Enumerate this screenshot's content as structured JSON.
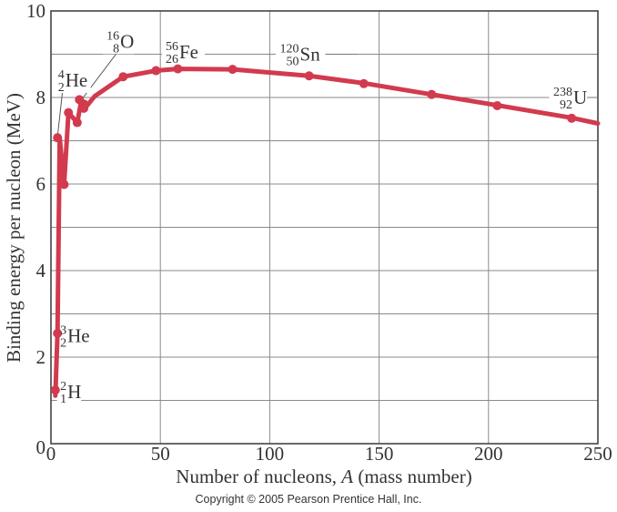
{
  "chart_data": {
    "type": "line",
    "title": "",
    "xlabel": "Number of nucleons, A (mass number)",
    "xlabel_parts": [
      "Number of nucleons, ",
      "A",
      " (mass number)"
    ],
    "ylabel": "Binding energy per nucleon (MeV)",
    "xlim": [
      0,
      250
    ],
    "ylim": [
      0,
      10
    ],
    "x_ticks": [
      0,
      50,
      100,
      150,
      200,
      250
    ],
    "y_ticks": [
      0,
      2,
      4,
      6,
      8,
      10
    ],
    "grid": {
      "x_step": 50,
      "y_step": 1
    },
    "line_color": "#d23a4e",
    "grid_color": "#8a8a8a",
    "series": [
      {
        "name": "Binding energy per nucleon",
        "points": [
          [
            2,
            1.11
          ],
          [
            3,
            2.57
          ],
          [
            4,
            7.07
          ],
          [
            6,
            5.99
          ],
          [
            8,
            7.65
          ],
          [
            12,
            7.42
          ],
          [
            14,
            7.95
          ],
          [
            15,
            7.72
          ],
          [
            16,
            7.78
          ],
          [
            20,
            8.03
          ],
          [
            33,
            8.48
          ],
          [
            48,
            8.62
          ],
          [
            58,
            8.66
          ],
          [
            83,
            8.65
          ],
          [
            118,
            8.5
          ],
          [
            143,
            8.33
          ],
          [
            174,
            8.07
          ],
          [
            204,
            7.82
          ],
          [
            238,
            7.53
          ],
          [
            250,
            7.4
          ]
        ],
        "markers": [
          [
            2,
            1.24
          ],
          [
            3,
            2.55
          ],
          [
            3,
            7.07
          ],
          [
            6,
            5.99
          ],
          [
            8,
            7.65
          ],
          [
            12,
            7.42
          ],
          [
            13,
            7.95
          ],
          [
            15,
            7.85
          ],
          [
            15,
            7.75
          ],
          [
            33,
            8.48
          ],
          [
            48,
            8.62
          ],
          [
            58,
            8.66
          ],
          [
            83,
            8.65
          ],
          [
            118,
            8.5
          ],
          [
            143,
            8.32
          ],
          [
            174,
            8.07
          ],
          [
            204,
            7.81
          ],
          [
            238,
            7.52
          ]
        ]
      }
    ],
    "annotations": [
      {
        "symbol": "H",
        "mass": "2",
        "atomic": "1",
        "x": 4,
        "y": 1.2,
        "leader": false
      },
      {
        "symbol": "He",
        "mass": "3",
        "atomic": "2",
        "x": 4,
        "y": 2.5,
        "leader": false
      },
      {
        "symbol": "He",
        "mass": "4",
        "atomic": "2",
        "x": 3,
        "y": 8.4,
        "leader": true,
        "leader_to": [
          3,
          7.1
        ]
      },
      {
        "symbol": "O",
        "mass": "16",
        "atomic": "8",
        "x": 25,
        "y": 9.3,
        "leader": true,
        "leader_to": [
          14,
          7.95
        ]
      },
      {
        "symbol": "Fe",
        "mass": "56",
        "atomic": "26",
        "x": 52,
        "y": 9.05,
        "leader": true,
        "leader_to": [
          70,
          9.0
        ]
      },
      {
        "symbol": "Sn",
        "mass": "120",
        "atomic": "50",
        "x": 104,
        "y": 9.0,
        "leader": true,
        "leader_to": [
          140,
          9.0
        ]
      },
      {
        "symbol": "U",
        "mass": "238",
        "atomic": "92",
        "x": 229,
        "y": 8.0,
        "leader": true,
        "leader_to": [
          250,
          8.0
        ]
      }
    ]
  },
  "footer": {
    "copyright": "Copyright © 2005 Pearson Prentice Hall, Inc."
  }
}
